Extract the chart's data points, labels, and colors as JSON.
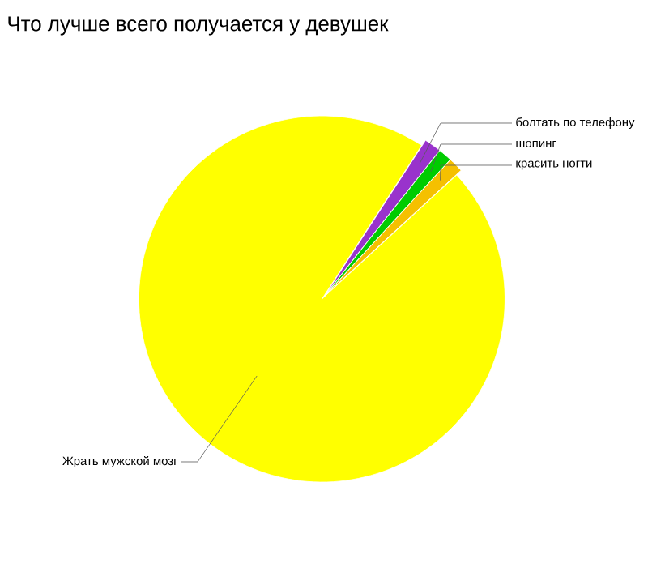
{
  "chart_data": {
    "type": "pie",
    "title": "Что лучше всего получается у девушек",
    "categories": [
      "болтать по телефону",
      "шопинг",
      "красить ногти",
      "Жрать мужской мозг"
    ],
    "values": [
      1.5,
      1.2,
      1.3,
      96
    ],
    "colors": [
      "#9933cc",
      "#00cc00",
      "#f5c000",
      "#ffff00"
    ]
  }
}
